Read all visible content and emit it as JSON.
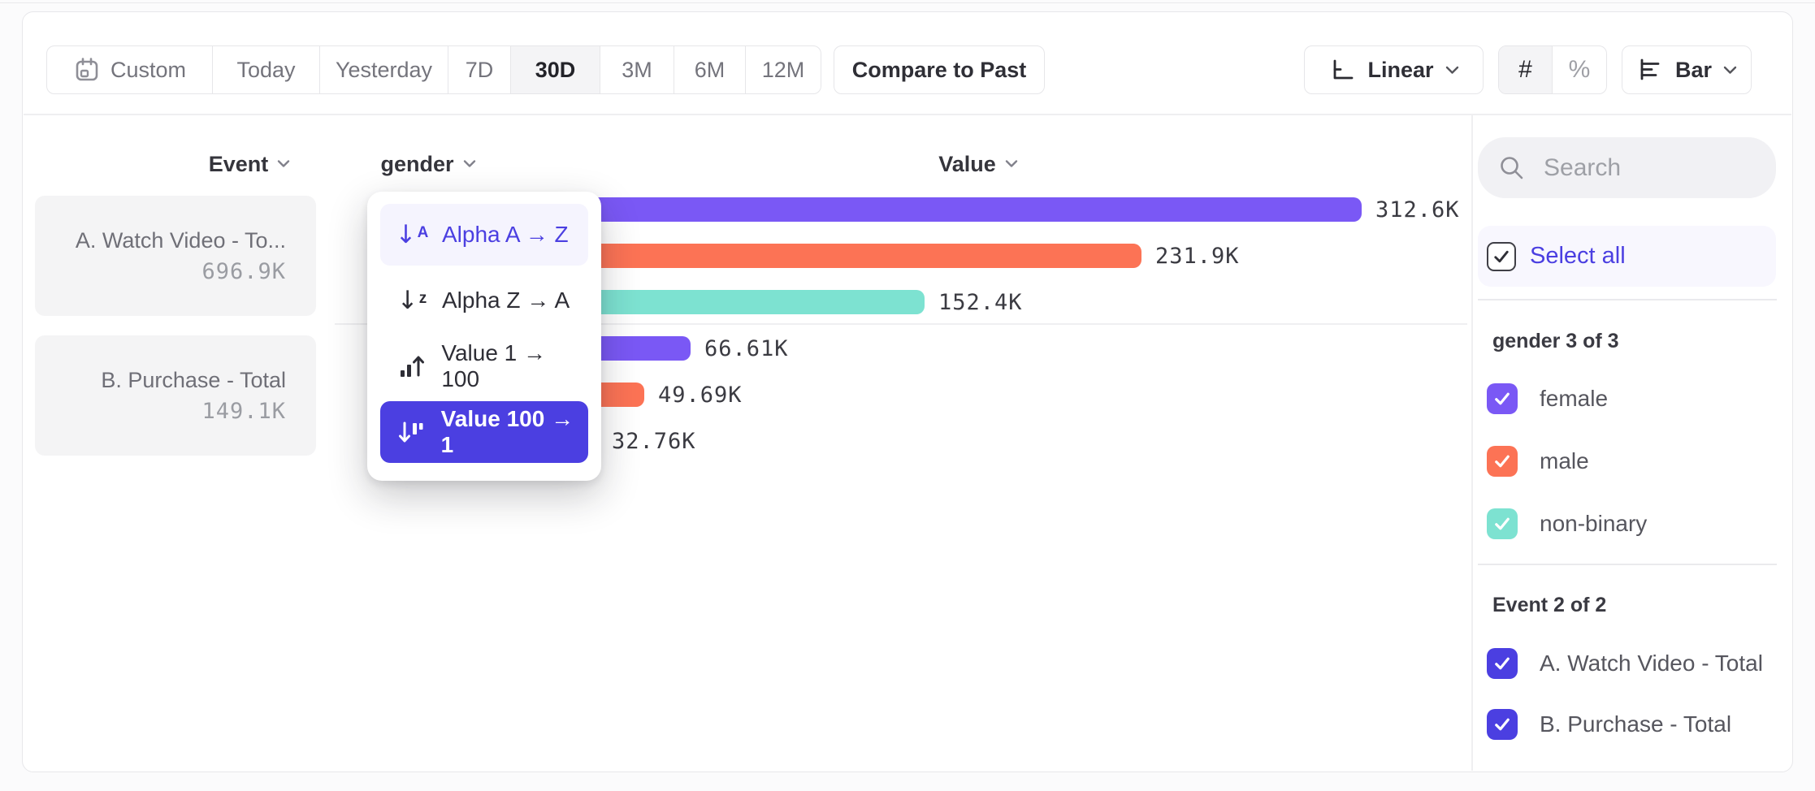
{
  "toolbar": {
    "date_ranges": {
      "items": [
        {
          "label": "Custom",
          "icon": "calendar",
          "selected": false
        },
        {
          "label": "Today",
          "selected": false
        },
        {
          "label": "Yesterday",
          "selected": false
        },
        {
          "label": "7D",
          "selected": false
        },
        {
          "label": "30D",
          "selected": true
        },
        {
          "label": "3M",
          "selected": false
        },
        {
          "label": "6M",
          "selected": false
        },
        {
          "label": "12M",
          "selected": false
        }
      ]
    },
    "compare_button": "Compare to Past",
    "scale_selector": {
      "label": "Linear"
    },
    "value_format": {
      "number": "#",
      "percent": "%",
      "selected": "#"
    },
    "chart_type_selector": {
      "label": "Bar"
    }
  },
  "columns": {
    "event": "Event",
    "breakdown": "gender",
    "value": "Value"
  },
  "event_cards": [
    {
      "title": "A. Watch Video - To...",
      "value": "696.9K"
    },
    {
      "title": "B. Purchase - Total",
      "value": "149.1K"
    }
  ],
  "sort_menu": {
    "items": [
      {
        "label": "Alpha A → Z",
        "state": "highlighted"
      },
      {
        "label": "Alpha Z → A",
        "state": "default"
      },
      {
        "label": "Value 1 → 100",
        "state": "default"
      },
      {
        "label": "Value 100 → 1",
        "state": "selected"
      }
    ]
  },
  "chart_data": {
    "type": "bar",
    "orientation": "horizontal",
    "title": "",
    "xlabel": "Value",
    "grid": false,
    "max_value": 312600,
    "groups": [
      {
        "event": "A. Watch Video - Total",
        "total_label": "696.9K",
        "bars": [
          {
            "category": "female",
            "value": 312600,
            "label": "312.6K",
            "color": "#7A58F5"
          },
          {
            "category": "male",
            "value": 231900,
            "label": "231.9K",
            "color": "#FC7355"
          },
          {
            "category": "non-binary",
            "value": 152400,
            "label": "152.4K",
            "color": "#7DE2D1"
          }
        ]
      },
      {
        "event": "B. Purchase - Total",
        "total_label": "149.1K",
        "bars": [
          {
            "category": "female",
            "value": 66610,
            "label": "66.61K",
            "color": "#7A58F5"
          },
          {
            "category": "male",
            "value": 49690,
            "label": "49.69K",
            "color": "#FC7355"
          },
          {
            "category": "non-binary",
            "value": 32760,
            "label": "32.76K",
            "color": "#7DE2D1"
          }
        ]
      }
    ]
  },
  "sidebar": {
    "search_placeholder": "Search",
    "select_all_label": "Select all",
    "groups": [
      {
        "title": "gender 3 of 3",
        "items": [
          {
            "label": "female",
            "checked": true,
            "color": "#7A58F5"
          },
          {
            "label": "male",
            "checked": true,
            "color": "#FC7355"
          },
          {
            "label": "non-binary",
            "checked": true,
            "color": "#7DE2D1"
          }
        ]
      },
      {
        "title": "Event 2 of 2",
        "items": [
          {
            "label": "A. Watch Video - Total",
            "checked": true,
            "color": "#4B3FE1"
          },
          {
            "label": "B. Purchase - Total",
            "checked": true,
            "color": "#4B3FE1"
          }
        ]
      }
    ]
  },
  "colors": {
    "accent": "#4B3FE1",
    "bar_female": "#7A58F5",
    "bar_male": "#FC7355",
    "bar_nonbinary": "#7DE2D1"
  }
}
